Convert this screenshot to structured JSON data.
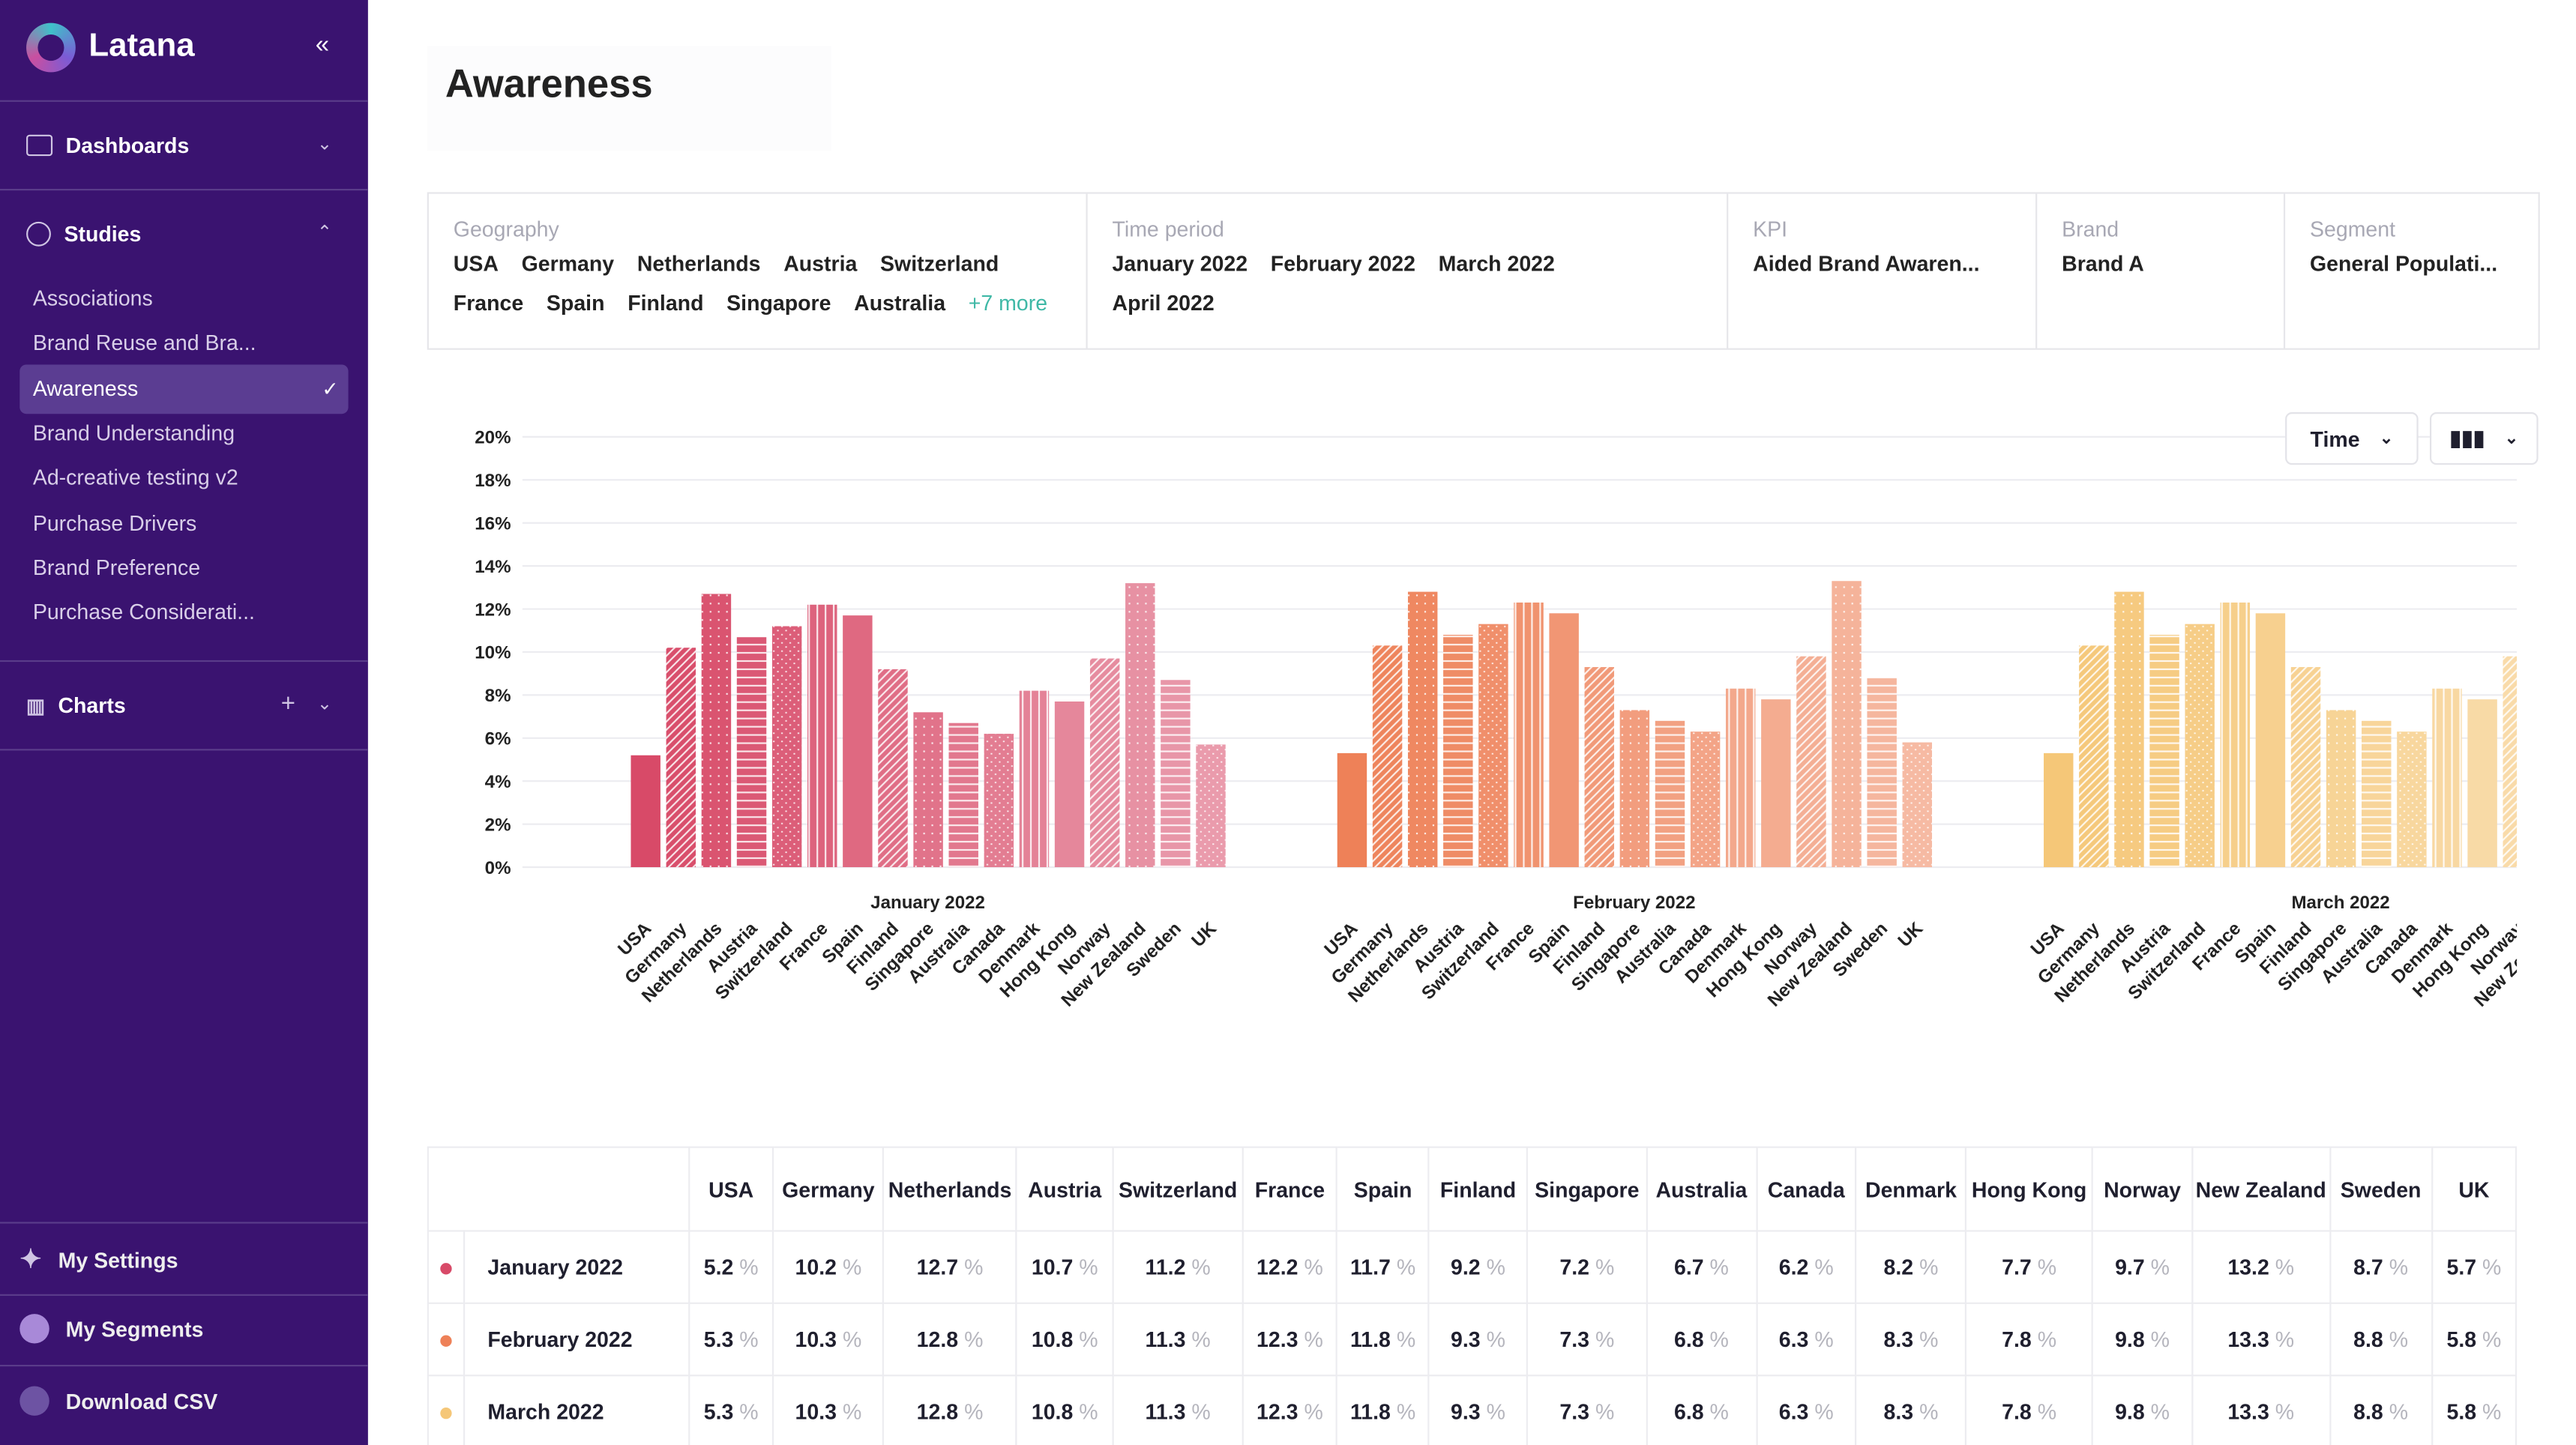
{
  "sidebar": {
    "brand": "Latana",
    "dashboards": "Dashboards",
    "studies": "Studies",
    "studies_items": [
      "Associations",
      "Brand Reuse and Bra...",
      "Awareness",
      "Brand Understanding",
      "Ad-creative testing v2",
      "Purchase Drivers",
      "Brand Preference",
      "Purchase Considerati..."
    ],
    "charts": "Charts",
    "footer": [
      "My Settings",
      "My Segments",
      "Download CSV"
    ]
  },
  "header": {
    "title": "Awareness"
  },
  "filters": [
    {
      "label": "Geography",
      "values": [
        "USA",
        "Germany",
        "Netherlands",
        "Austria",
        "Switzerland",
        "France",
        "Spain",
        "Finland",
        "Singapore",
        "Australia"
      ],
      "more": "+7 more"
    },
    {
      "label": "Time period",
      "values": [
        "January 2022",
        "February 2022",
        "March 2022",
        "April 2022"
      ]
    },
    {
      "label": "KPI",
      "values": [
        "Aided Brand Awaren..."
      ]
    },
    {
      "label": "Brand",
      "values": [
        "Brand A"
      ]
    },
    {
      "label": "Segment",
      "values": [
        "General Populati..."
      ]
    }
  ],
  "controls": {
    "group_by": "Time"
  },
  "chart_data": {
    "type": "bar",
    "categories": [
      "USA",
      "Germany",
      "Netherlands",
      "Austria",
      "Switzerland",
      "France",
      "Spain",
      "Finland",
      "Singapore",
      "Australia",
      "Canada",
      "Denmark",
      "Hong Kong",
      "Norway",
      "New Zealand",
      "Sweden",
      "UK"
    ],
    "series": [
      {
        "name": "January 2022",
        "color": "#d84a68",
        "values": [
          5.2,
          10.2,
          12.7,
          10.7,
          11.2,
          12.2,
          11.7,
          9.2,
          7.2,
          6.7,
          6.2,
          8.2,
          7.7,
          9.7,
          13.2,
          8.7,
          5.7
        ]
      },
      {
        "name": "February 2022",
        "color": "#ee8158",
        "values": [
          5.3,
          10.3,
          12.8,
          10.8,
          11.3,
          12.3,
          11.8,
          9.3,
          7.3,
          6.8,
          6.3,
          8.3,
          7.8,
          9.8,
          13.3,
          8.8,
          5.8
        ]
      },
      {
        "name": "March 2022",
        "color": "#f5c778",
        "values": [
          5.3,
          10.3,
          12.8,
          10.8,
          11.3,
          12.3,
          11.8,
          9.3,
          7.3,
          6.8,
          6.3,
          8.3,
          7.8,
          9.8,
          13.3,
          8.8,
          5.8
        ]
      }
    ],
    "ylim": [
      0,
      20
    ],
    "yticks": [
      {
        "value": 0,
        "label": "0%"
      },
      {
        "value": 2,
        "label": "2%"
      },
      {
        "value": 4,
        "label": "4%"
      },
      {
        "value": 6,
        "label": "6%"
      },
      {
        "value": 8,
        "label": "8%"
      },
      {
        "value": 10,
        "label": "10%"
      },
      {
        "value": 12,
        "label": "12%"
      },
      {
        "value": 14,
        "label": "14%"
      },
      {
        "value": 16,
        "label": "16%"
      },
      {
        "value": 18,
        "label": "18%"
      },
      {
        "value": 20,
        "label": "20%"
      }
    ],
    "grid": true
  },
  "table": {
    "unit": "%"
  }
}
